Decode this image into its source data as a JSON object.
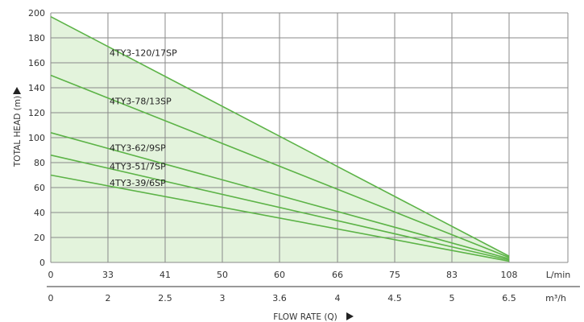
{
  "chart_data": {
    "type": "line",
    "ylabel": "TOTAL HEAD (m)",
    "xlabel": "FLOW RATE (Q)",
    "ylim": [
      0,
      200
    ],
    "y_ticks": [
      "0",
      "20",
      "40",
      "60",
      "80",
      "100",
      "120",
      "140",
      "160",
      "180",
      "200"
    ],
    "x_ticks_lmin": [
      "0",
      "33",
      "41",
      "50",
      "60",
      "66",
      "75",
      "83",
      "108"
    ],
    "x_unit_lmin": "L/min",
    "x_ticks_m3h": [
      "0",
      "2",
      "2.5",
      "3",
      "3.6",
      "4",
      "4.5",
      "5",
      "6.5"
    ],
    "x_unit_m3h": "m³/h",
    "x_values_m3h": [
      0,
      2,
      2.5,
      3,
      3.6,
      4,
      4.5,
      5,
      6.5
    ],
    "grid": true,
    "colors": {
      "line": "#5cb347",
      "fill": "#e3f3dc",
      "grid": "#8a8a8a"
    },
    "series": [
      {
        "name": "4TY3-120/17SP",
        "x": [
          0,
          6.5
        ],
        "values": [
          197,
          5
        ]
      },
      {
        "name": "4TY3-78/13SP",
        "x": [
          0,
          6.5
        ],
        "values": [
          150,
          4
        ]
      },
      {
        "name": "4TY3-62/9SP",
        "x": [
          0,
          6.5
        ],
        "values": [
          104,
          3
        ]
      },
      {
        "name": "4TY3-51/7SP",
        "x": [
          0,
          6.5
        ],
        "values": [
          86,
          2
        ]
      },
      {
        "name": "4TY3-39/6SP",
        "x": [
          0,
          6.5
        ],
        "values": [
          70,
          1
        ]
      }
    ]
  }
}
